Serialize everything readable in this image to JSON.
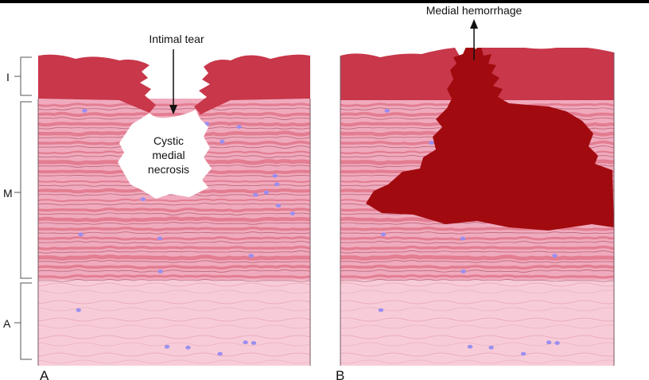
{
  "layers": {
    "intima": "I",
    "media": "M",
    "adventitia": "A"
  },
  "panels": [
    {
      "letter": "A"
    },
    {
      "letter": "B"
    }
  ],
  "annotations": {
    "intimal_tear": "Intimal tear",
    "cystic_necrosis_line1": "Cystic",
    "cystic_necrosis_line2": "medial",
    "cystic_necrosis_line3": "necrosis",
    "medial_hemorrhage": "Medial hemorrhage"
  },
  "colors": {
    "intima": "#c8374a",
    "media": "#f0aabd",
    "media_bands": "#d9576d",
    "adventitia": "#f7ccd8",
    "hemorrhage": "#a10b10",
    "nuclei": "#9a8ef0"
  }
}
